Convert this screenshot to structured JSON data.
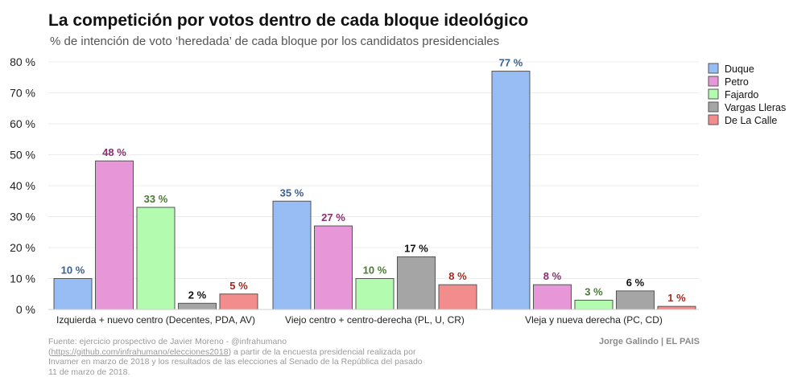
{
  "chart_data": {
    "type": "bar",
    "title": "La competición por votos dentro de cada bloque ideológico",
    "subtitle": "% de intención de voto ‘heredada’ de cada bloque por los candidatos presidenciales",
    "categories": [
      "Izquierda + nuevo centro (Decentes, PDA, AV)",
      "Viejo centro + centro-derecha (PL, U, CR)",
      "Vleja y nueva derecha (PC, CD)"
    ],
    "series": [
      {
        "name": "Duque",
        "values": [
          10,
          35,
          77
        ],
        "color": "#98bdf5",
        "label_color": "#3a5f93"
      },
      {
        "name": "Petro",
        "values": [
          48,
          27,
          8
        ],
        "color": "#e796d7",
        "label_color": "#8a2f6f"
      },
      {
        "name": "Fajardo",
        "values": [
          33,
          10,
          3
        ],
        "color": "#b3fbae",
        "label_color": "#4a7a35"
      },
      {
        "name": "Vargas Lleras",
        "values": [
          2,
          17,
          6
        ],
        "color": "#a5a5a5",
        "label_color": "#111111"
      },
      {
        "name": "De La Calle",
        "values": [
          5,
          8,
          1
        ],
        "color": "#f38c8c",
        "label_color": "#a32a22"
      }
    ],
    "value_suffix": " %",
    "ylim": [
      0,
      80
    ],
    "yticks": [
      0,
      10,
      20,
      30,
      40,
      50,
      60,
      70,
      80
    ],
    "ytick_labels": [
      "0 %",
      "10 %",
      "20 %",
      "30 %",
      "40 %",
      "50 %",
      "60 %",
      "70 %",
      "80 %"
    ],
    "xlabel": "",
    "ylabel": "",
    "grid": true,
    "legend_position": "top-right"
  },
  "footer": {
    "source_prefix": "Fuente: ejercicio prospectivo de Javier Moreno - @infrahumano (",
    "source_link": "https://github.com/infrahumano/elecciones2018",
    "source_suffix": ") a partir de la encuesta presidencial realizada por Invamer en marzo de 2018 y los resultados de las elecciones al Senado de la República del pasado 11 de marzo de 2018.",
    "credit": "Jorge Galindo | EL PAIS"
  }
}
